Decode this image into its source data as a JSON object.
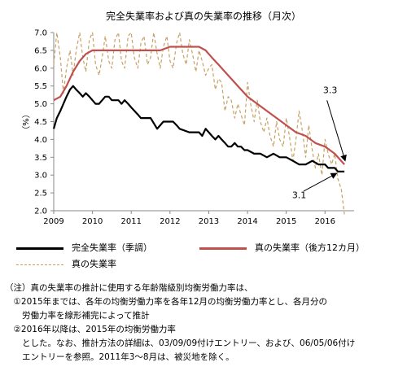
{
  "chart_data": {
    "type": "line",
    "title": "完全失業率および真の失業率の推移（月次）",
    "ylabel": "（%）",
    "ylim": [
      2.0,
      7.0
    ],
    "yticks": [
      "2.0",
      "2.5",
      "3.0",
      "3.5",
      "4.0",
      "4.5",
      "5.0",
      "5.5",
      "6.0",
      "6.5",
      "7.0"
    ],
    "xlim": [
      2009,
      2016.75
    ],
    "xticks": [
      "2009",
      "2010",
      "2011",
      "2012",
      "2013",
      "2014",
      "2015",
      "2016"
    ],
    "grid": false,
    "legend_position": "bottom",
    "series": [
      {
        "name": "完全失業率（季調）",
        "color": "#000000",
        "style": "solid",
        "x": [
          2009.0,
          2009.08,
          2009.17,
          2009.25,
          2009.33,
          2009.42,
          2009.5,
          2009.58,
          2009.67,
          2009.75,
          2009.83,
          2009.92,
          2010.0,
          2010.08,
          2010.17,
          2010.25,
          2010.33,
          2010.42,
          2010.5,
          2010.58,
          2010.67,
          2010.75,
          2010.83,
          2010.92,
          2011.0,
          2011.17,
          2011.25,
          2011.33,
          2011.5,
          2011.67,
          2011.75,
          2011.83,
          2011.92,
          2012.0,
          2012.08,
          2012.17,
          2012.25,
          2012.5,
          2012.75,
          2012.83,
          2012.92,
          2013.0,
          2013.08,
          2013.17,
          2013.25,
          2013.33,
          2013.42,
          2013.5,
          2013.58,
          2013.67,
          2013.75,
          2013.83,
          2013.92,
          2014.0,
          2014.17,
          2014.33,
          2014.5,
          2014.67,
          2014.83,
          2015.0,
          2015.17,
          2015.33,
          2015.5,
          2015.67,
          2015.83,
          2016.0,
          2016.08,
          2016.17,
          2016.25,
          2016.33,
          2016.42,
          2016.5
        ],
        "y": [
          4.3,
          4.6,
          4.8,
          5.0,
          5.2,
          5.4,
          5.5,
          5.4,
          5.3,
          5.2,
          5.3,
          5.2,
          5.1,
          5.0,
          5.0,
          5.1,
          5.2,
          5.2,
          5.1,
          5.1,
          5.1,
          5.0,
          5.1,
          5.0,
          4.9,
          4.7,
          4.6,
          4.6,
          4.6,
          4.3,
          4.4,
          4.5,
          4.5,
          4.5,
          4.5,
          4.4,
          4.3,
          4.2,
          4.2,
          4.1,
          4.3,
          4.2,
          4.1,
          4.0,
          4.1,
          4.0,
          3.9,
          3.8,
          3.8,
          3.9,
          3.8,
          3.8,
          3.7,
          3.7,
          3.6,
          3.6,
          3.5,
          3.6,
          3.5,
          3.5,
          3.4,
          3.3,
          3.3,
          3.4,
          3.3,
          3.3,
          3.2,
          3.2,
          3.2,
          3.1,
          3.1,
          3.1
        ]
      },
      {
        "name": "真の失業率（後方12カ月）",
        "color": "#c0504d",
        "style": "solid",
        "x": [
          2009.0,
          2009.17,
          2009.33,
          2009.5,
          2009.67,
          2009.83,
          2010.0,
          2010.17,
          2010.33,
          2010.5,
          2010.75,
          2011.0,
          2011.25,
          2011.5,
          2011.75,
          2012.0,
          2012.25,
          2012.5,
          2012.75,
          2012.92,
          2013.08,
          2013.25,
          2013.5,
          2013.75,
          2014.0,
          2014.25,
          2014.5,
          2014.75,
          2015.0,
          2015.25,
          2015.5,
          2015.75,
          2016.0,
          2016.25,
          2016.5
        ],
        "y": [
          5.1,
          5.2,
          5.5,
          5.9,
          6.2,
          6.4,
          6.5,
          6.5,
          6.5,
          6.5,
          6.5,
          6.5,
          6.5,
          6.5,
          6.5,
          6.6,
          6.6,
          6.6,
          6.6,
          6.5,
          6.3,
          6.1,
          5.8,
          5.5,
          5.2,
          5.0,
          4.8,
          4.6,
          4.4,
          4.2,
          4.1,
          3.9,
          3.8,
          3.6,
          3.3
        ]
      },
      {
        "name": "真の失業率",
        "color": "#c8a064",
        "style": "dashed",
        "x": [
          2009.0,
          2009.08,
          2009.17,
          2009.25,
          2009.33,
          2009.42,
          2009.5,
          2009.58,
          2009.67,
          2009.75,
          2009.83,
          2009.92,
          2010.0,
          2010.08,
          2010.17,
          2010.25,
          2010.33,
          2010.42,
          2010.5,
          2010.58,
          2010.67,
          2010.75,
          2010.83,
          2010.92,
          2011.0,
          2011.08,
          2011.17,
          2011.25,
          2011.33,
          2011.42,
          2011.5,
          2011.58,
          2011.67,
          2011.75,
          2011.83,
          2011.92,
          2012.0,
          2012.08,
          2012.17,
          2012.25,
          2012.33,
          2012.42,
          2012.5,
          2012.58,
          2012.67,
          2012.75,
          2012.83,
          2012.92,
          2013.0,
          2013.08,
          2013.17,
          2013.25,
          2013.33,
          2013.42,
          2013.5,
          2013.58,
          2013.67,
          2013.75,
          2013.83,
          2013.92,
          2014.0,
          2014.08,
          2014.17,
          2014.25,
          2014.33,
          2014.42,
          2014.5,
          2014.58,
          2014.67,
          2014.75,
          2014.83,
          2014.92,
          2015.0,
          2015.08,
          2015.17,
          2015.25,
          2015.33,
          2015.42,
          2015.5,
          2015.58,
          2015.67,
          2015.75,
          2015.83,
          2015.92,
          2016.0,
          2016.08,
          2016.17,
          2016.25,
          2016.33,
          2016.42,
          2016.5
        ],
        "y": [
          6.1,
          7.0,
          6.3,
          5.3,
          6.0,
          6.5,
          5.8,
          6.5,
          7.0,
          6.3,
          5.9,
          6.8,
          7.0,
          6.1,
          5.8,
          6.3,
          6.9,
          6.2,
          6.0,
          6.8,
          7.0,
          6.2,
          6.0,
          6.9,
          7.0,
          6.3,
          6.0,
          6.7,
          6.9,
          6.1,
          6.3,
          7.0,
          6.4,
          6.0,
          6.6,
          6.9,
          6.2,
          6.0,
          6.7,
          7.0,
          6.4,
          6.1,
          6.8,
          6.4,
          5.9,
          6.5,
          6.2,
          5.8,
          6.0,
          6.1,
          5.4,
          5.7,
          5.6,
          4.8,
          5.2,
          5.1,
          4.6,
          5.0,
          4.7,
          4.4,
          5.6,
          5.0,
          4.5,
          5.1,
          4.5,
          4.2,
          4.6,
          4.1,
          3.8,
          4.5,
          4.0,
          3.8,
          4.6,
          4.1,
          3.4,
          4.0,
          4.8,
          4.2,
          3.5,
          4.4,
          3.7,
          3.2,
          3.6,
          3.0,
          4.0,
          3.6,
          3.3,
          3.6,
          2.9,
          2.6,
          1.9
        ]
      }
    ],
    "annotations": [
      {
        "text": "3.3",
        "x": 2015.95,
        "y": 5.3
      },
      {
        "text": "3.1",
        "x": 2015.15,
        "y": 2.35
      }
    ]
  },
  "legend": {
    "items": [
      {
        "label": "完全失業率（季調）",
        "color": "#000000",
        "style": "solid"
      },
      {
        "label": "真の失業率（後方12カ月）",
        "color": "#c0504d",
        "style": "solid"
      },
      {
        "label": "真の失業率",
        "color": "#c8a064",
        "style": "dashed"
      }
    ]
  },
  "note": {
    "lines": [
      "（注）真の失業率の推計に使用する年齢階級別均衡労働力率は、",
      "　①2015年までは、各年の均衡労働力率を各年12月の均衡労働力率とし、各月分の",
      "　　労働力率を線形補完によって推計",
      "　②2016年以降は、2015年の均衡労働力率",
      "　　とした。なお、推計方法の詳細は、03/09/09付けエントリー、および、06/05/06付け",
      "　　エントリーを参照。2011年3～8月は、被災地を除く。"
    ]
  }
}
